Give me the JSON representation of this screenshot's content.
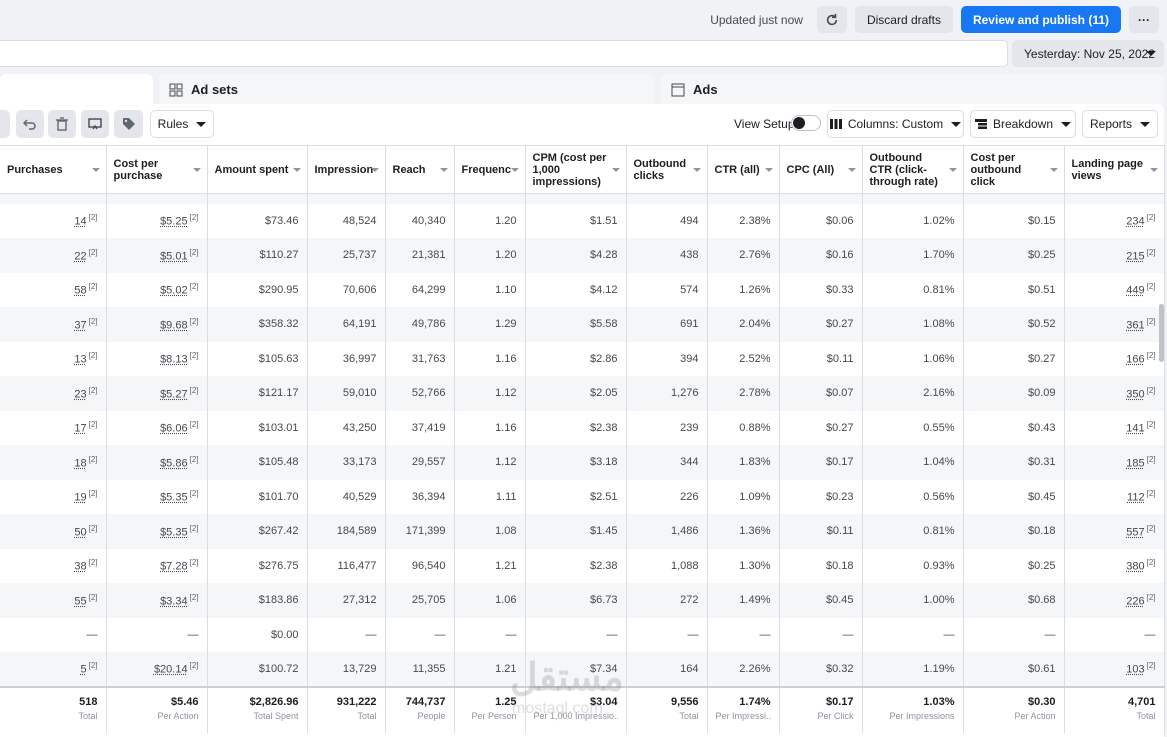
{
  "topbar": {
    "updated": "Updated just now",
    "discard": "Discard drafts",
    "review": "Review and publish (11)",
    "more": "···"
  },
  "date": "Yesterday: Nov 25, 2022",
  "tabs": {
    "adsets": "Ad sets",
    "ads": "Ads"
  },
  "toolbar": {
    "rules": "Rules",
    "view_setup": "View Setup",
    "columns": "Columns: Custom",
    "breakdown": "Breakdown",
    "reports": "Reports"
  },
  "columns": [
    "Purchases",
    "Cost per purchase",
    "Amount spent",
    "Impression",
    "Reach",
    "Frequenc",
    "CPM (cost per 1,000 impressions)",
    "Outbound clicks",
    "CTR (all)",
    "CPC (All)",
    "Outbound CTR (click-through rate)",
    "Cost per outbound click",
    "Landing page views"
  ],
  "rows": [
    [
      "14",
      "$5.25",
      "$73.46",
      "48,524",
      "40,340",
      "1.20",
      "$1.51",
      "494",
      "2.38%",
      "$0.06",
      "1.02%",
      "$0.15",
      "234"
    ],
    [
      "22",
      "$5.01",
      "$110.27",
      "25,737",
      "21,381",
      "1.20",
      "$4.28",
      "438",
      "2.76%",
      "$0.16",
      "1.70%",
      "$0.25",
      "215"
    ],
    [
      "58",
      "$5.02",
      "$290.95",
      "70,606",
      "64,299",
      "1.10",
      "$4.12",
      "574",
      "1.26%",
      "$0.33",
      "0.81%",
      "$0.51",
      "449"
    ],
    [
      "37",
      "$9.68",
      "$358.32",
      "64,191",
      "49,786",
      "1.29",
      "$5.58",
      "691",
      "2.04%",
      "$0.27",
      "1.08%",
      "$0.52",
      "361"
    ],
    [
      "13",
      "$8.13",
      "$105.63",
      "36,997",
      "31,763",
      "1.16",
      "$2.86",
      "394",
      "2.52%",
      "$0.11",
      "1.06%",
      "$0.27",
      "166"
    ],
    [
      "23",
      "$5.27",
      "$121.17",
      "59,010",
      "52,766",
      "1.12",
      "$2.05",
      "1,276",
      "2.78%",
      "$0.07",
      "2.16%",
      "$0.09",
      "350"
    ],
    [
      "17",
      "$6.06",
      "$103.01",
      "43,250",
      "37,419",
      "1.16",
      "$2.38",
      "239",
      "0.88%",
      "$0.27",
      "0.55%",
      "$0.43",
      "141"
    ],
    [
      "18",
      "$5.86",
      "$105.48",
      "33,173",
      "29,557",
      "1.12",
      "$3.18",
      "344",
      "1.83%",
      "$0.17",
      "1.04%",
      "$0.31",
      "185"
    ],
    [
      "19",
      "$5.35",
      "$101.70",
      "40,529",
      "36,394",
      "1.11",
      "$2.51",
      "226",
      "1.09%",
      "$0.23",
      "0.56%",
      "$0.45",
      "112"
    ],
    [
      "50",
      "$5.35",
      "$267.42",
      "184,589",
      "171,399",
      "1.08",
      "$1.45",
      "1,486",
      "1.36%",
      "$0.11",
      "0.81%",
      "$0.18",
      "557"
    ],
    [
      "38",
      "$7.28",
      "$276.75",
      "116,477",
      "96,540",
      "1.21",
      "$2.38",
      "1,088",
      "1.30%",
      "$0.18",
      "0.93%",
      "$0.25",
      "380"
    ],
    [
      "55",
      "$3.34",
      "$183.86",
      "27,312",
      "25,705",
      "1.06",
      "$6.73",
      "272",
      "1.49%",
      "$0.45",
      "1.00%",
      "$0.68",
      "226"
    ],
    [
      "—",
      "—",
      "$0.00",
      "—",
      "—",
      "—",
      "—",
      "—",
      "—",
      "—",
      "—",
      "—",
      "—"
    ],
    [
      "5",
      "$20.14",
      "$100.72",
      "13,729",
      "11,355",
      "1.21",
      "$7.34",
      "164",
      "2.26%",
      "$0.32",
      "1.19%",
      "$0.61",
      "103"
    ]
  ],
  "totals": [
    {
      "v": "518",
      "l": "Total"
    },
    {
      "v": "$5.46",
      "l": "Per Action"
    },
    {
      "v": "$2,826.96",
      "l": "Total Spent"
    },
    {
      "v": "931,222",
      "l": "Total"
    },
    {
      "v": "744,737",
      "l": "People"
    },
    {
      "v": "1.25",
      "l": "Per Person"
    },
    {
      "v": "$3.04",
      "l": "Per 1,000 Impressio..."
    },
    {
      "v": "9,556",
      "l": "Total"
    },
    {
      "v": "1.74%",
      "l": "Per Impressi..."
    },
    {
      "v": "$0.17",
      "l": "Per Click"
    },
    {
      "v": "1.03%",
      "l": "Per Impressions"
    },
    {
      "v": "$0.30",
      "l": "Per Action"
    },
    {
      "v": "4,701",
      "l": "Total"
    }
  ],
  "watermark": {
    "main": "مستقل",
    "sub": "mostaql.com"
  }
}
